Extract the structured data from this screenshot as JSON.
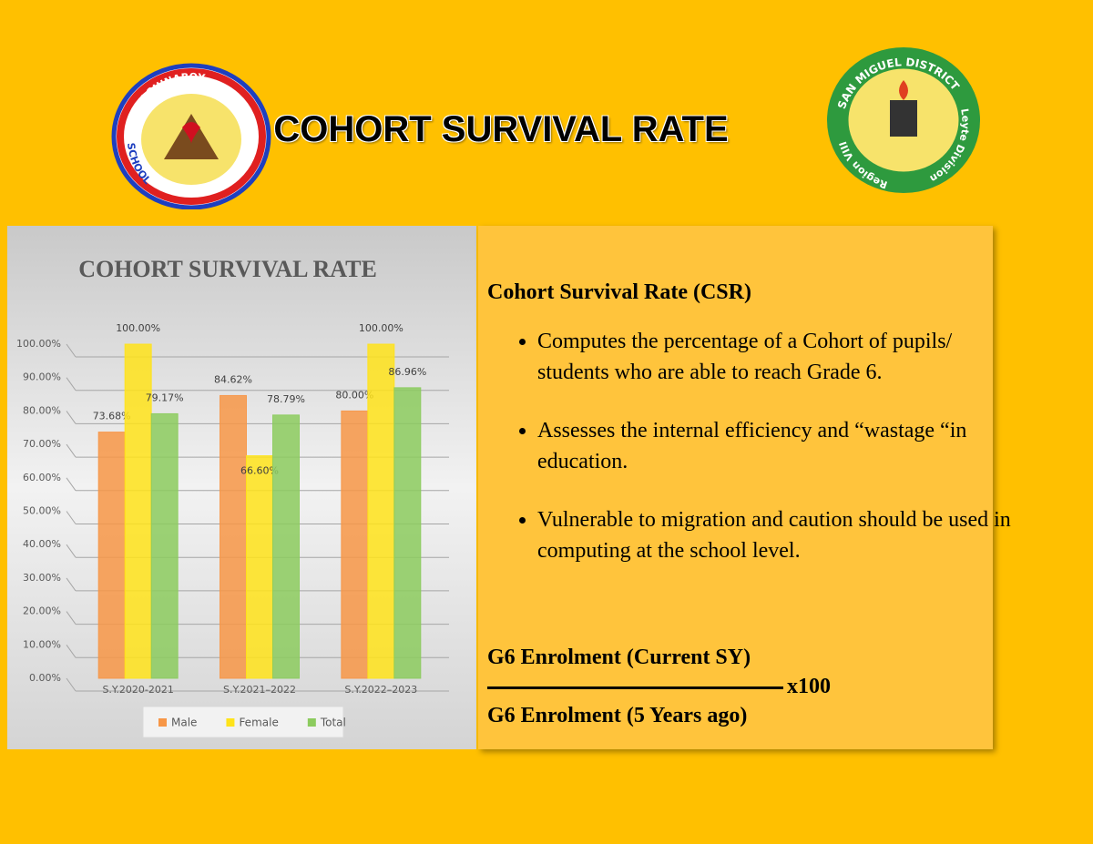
{
  "header": {
    "title": "COHORT SURVIVAL RATE"
  },
  "logos": {
    "left": {
      "top": "MALAGUINABOY",
      "bottom": "SCHOOL"
    },
    "right": {
      "top": "SAN MIGUEL DISTRICT",
      "right": "Leyte Division",
      "left": "Region VIII"
    }
  },
  "chart_data": {
    "type": "bar",
    "title": "COHORT SURVIVAL RATE",
    "categories": [
      "S.Y.2020-2021",
      "S.Y.2021–2022",
      "S.Y.2022–2023"
    ],
    "series": [
      {
        "name": "Male",
        "color": "#F79646",
        "values": [
          73.68,
          84.62,
          80.0
        ],
        "value_labels": [
          "73.68%",
          "84.62%",
          "80.00%"
        ]
      },
      {
        "name": "Female",
        "color": "#FFE31A",
        "values": [
          100,
          66.6,
          100
        ],
        "value_labels": [
          "100.00%",
          "66.60%",
          "100.00%"
        ]
      },
      {
        "name": "Total",
        "color": "#8CCB5E",
        "values": [
          79.17,
          78.79,
          86.96
        ],
        "value_labels": [
          "79.17%",
          "78.79%",
          "86.96%"
        ]
      }
    ],
    "ylim": [
      0,
      100
    ],
    "yticks": [
      {
        "value": 0,
        "label": "0.00%"
      },
      {
        "value": 10,
        "label": "10.00%"
      },
      {
        "value": 20,
        "label": "20.00%"
      },
      {
        "value": 30,
        "label": "30.00%"
      },
      {
        "value": 40,
        "label": "40.00%"
      },
      {
        "value": 50,
        "label": "50.00%"
      },
      {
        "value": 60,
        "label": "60.00%"
      },
      {
        "value": 70,
        "label": "70.00%"
      },
      {
        "value": 80,
        "label": "80.00%"
      },
      {
        "value": 90,
        "label": "90.00%"
      },
      {
        "value": 100,
        "label": "100.00%"
      }
    ],
    "grid": true,
    "legend": "bottom"
  },
  "info": {
    "heading": "Cohort Survival Rate (CSR)",
    "bullets": [
      "Computes the percentage of a Cohort of pupils/ students who are able to reach Grade 6.",
      "Assesses the internal efficiency and “wastage “in education.",
      "Vulnerable to migration and caution should be used in computing at the school level."
    ],
    "formula": {
      "numerator": "G6 Enrolment (Current SY)",
      "multiplier": "x100",
      "denominator": "G6 Enrolment (5 Years ago)"
    }
  }
}
